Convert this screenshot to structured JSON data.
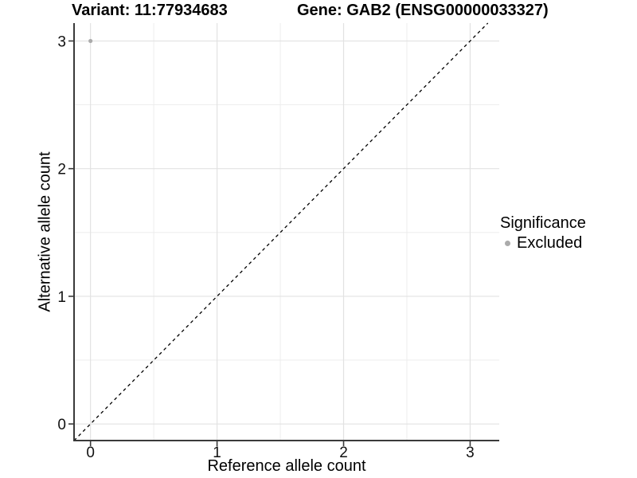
{
  "chart_data": {
    "type": "scatter",
    "title_left": "Variant: 11:77934683",
    "title_right": "Gene: GAB2 (ENSG00000033327)",
    "xlabel": "Reference allele count",
    "ylabel": "Alternative allele count",
    "xlim": [
      -0.13,
      3.23
    ],
    "ylim": [
      -0.13,
      3.14
    ],
    "xticks": [
      0,
      1,
      2,
      3
    ],
    "yticks": [
      0,
      1,
      2,
      3
    ],
    "x_minor_breaks": [
      0.5,
      1.5,
      2.5
    ],
    "y_minor_breaks": [
      0.5,
      1.5,
      2.5
    ],
    "grid": true,
    "points": [
      {
        "x": 0,
        "y": 3,
        "series": "Excluded",
        "color": "#ababab"
      }
    ],
    "abline": {
      "slope": 1,
      "intercept": 0,
      "style": "dashed",
      "color": "#000000"
    },
    "legend": {
      "title": "Significance",
      "position": "right",
      "entries": [
        {
          "label": "Excluded",
          "color": "#ababab"
        }
      ]
    },
    "colors": {
      "grid_major": "#e2e2e2",
      "grid_minor": "#ededed",
      "axis_line": "#3a3a3a",
      "tick_text": "#111111",
      "point": "#ababab"
    }
  }
}
